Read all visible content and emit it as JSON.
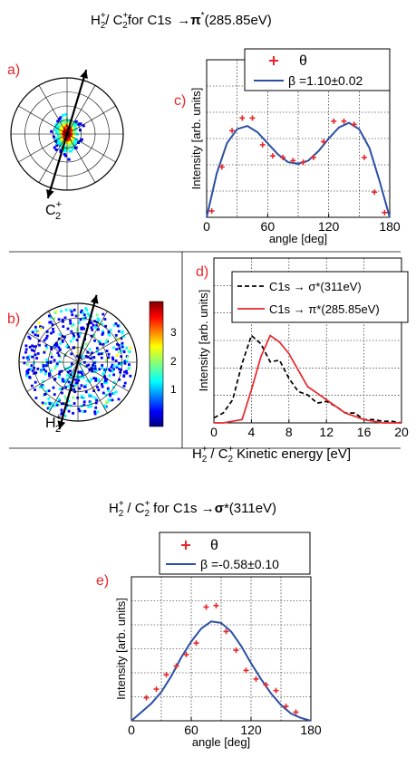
{
  "figure": {
    "title_top": {
      "main": "H",
      "sup": "+",
      "sub": "2",
      "slash": "/ C",
      "sup2": "+",
      "sub2": "2",
      "tail": "for C1s",
      "arrow": "→",
      "pi": "π",
      "star": "*",
      "energy": "(285.85eV)"
    },
    "title_bottom": {
      "main": "H",
      "sup": "+",
      "sub": "2",
      "slash": " / C",
      "sup2": "+",
      "sub2": "2",
      "tail": " for C1s ",
      "arrow": "→",
      "sigma": "σ",
      "star": "*",
      "energy": "(311eV)"
    },
    "panel_labels": {
      "a": "a)",
      "b": "b)",
      "c": "c)",
      "d": "d)",
      "e": "e)"
    },
    "polar_a_label": {
      "base": "C",
      "sup": "+",
      "sub": "2"
    },
    "polar_b_label": {
      "base": "H",
      "sup": "+",
      "sub": "2"
    },
    "colorbar_ticks": [
      "1",
      "2",
      "3"
    ],
    "colors": {
      "red": "#e8262a",
      "blue": "#2a4fa5",
      "black": "#000000"
    }
  },
  "chart_data": [
    {
      "id": "c",
      "type": "scatter",
      "xlabel": "angle [deg]",
      "ylabel": "Intensity [arb. units]",
      "xticks": [
        "0",
        "60",
        "120",
        "180"
      ],
      "xlim": [
        0,
        180
      ],
      "ylim": [
        0,
        1.0
      ],
      "legend": {
        "placement": "top-right",
        "points_label": "θ",
        "fit_label": "β =1.10±0.02"
      },
      "points": {
        "x": [
          5,
          15,
          25,
          35,
          45,
          55,
          65,
          75,
          85,
          95,
          105,
          115,
          125,
          135,
          145,
          155,
          165,
          175
        ],
        "y": [
          0.04,
          0.32,
          0.55,
          0.63,
          0.63,
          0.46,
          0.39,
          0.38,
          0.36,
          0.35,
          0.38,
          0.48,
          0.61,
          0.61,
          0.59,
          0.38,
          0.16,
          0.03
        ]
      },
      "fit": {
        "x": [
          0,
          10,
          20,
          30,
          40,
          50,
          60,
          70,
          80,
          90,
          100,
          110,
          120,
          130,
          140,
          150,
          160,
          170,
          180
        ],
        "y": [
          0.0,
          0.28,
          0.47,
          0.56,
          0.58,
          0.54,
          0.47,
          0.4,
          0.35,
          0.34,
          0.36,
          0.42,
          0.5,
          0.57,
          0.6,
          0.56,
          0.44,
          0.23,
          0.0
        ]
      }
    },
    {
      "id": "d",
      "type": "line",
      "xlabel_pre": {
        "h": "H",
        "hsup": "+",
        "hsub": "2",
        "c": " / C",
        "csup": "+",
        "csub": "2"
      },
      "xlabel": "Kinetic energy [eV]",
      "ylabel": "Intensity [arb. units]",
      "xticks": [
        "0",
        "4",
        "8",
        "12",
        "16",
        "20"
      ],
      "xlim": [
        0,
        20
      ],
      "ylim": [
        0,
        1.0
      ],
      "legend": {
        "placement": "top-right",
        "entries": [
          {
            "prefix": "C1s",
            "arrow": "→",
            "sym": "σ*",
            "energy": "(311eV)"
          },
          {
            "prefix": "C1s",
            "arrow": "→",
            "sym": "π*",
            "energy": "(285.85eV)"
          }
        ]
      },
      "series": [
        {
          "style": "dashed-black",
          "x": [
            0,
            1,
            2,
            3,
            4,
            5,
            6,
            7,
            8,
            9,
            10,
            11,
            12,
            13,
            14,
            15,
            16,
            17,
            18,
            19,
            20
          ],
          "y": [
            0.03,
            0.06,
            0.14,
            0.36,
            0.53,
            0.48,
            0.37,
            0.38,
            0.27,
            0.19,
            0.17,
            0.12,
            0.13,
            0.1,
            0.06,
            0.06,
            0.02,
            0.02,
            0.01,
            0.01,
            0.0
          ]
        },
        {
          "style": "solid-red",
          "x": [
            0,
            1,
            2,
            3,
            4,
            5,
            6,
            7,
            8,
            9,
            10,
            11,
            12,
            13,
            14,
            15,
            16,
            17,
            18,
            19,
            20
          ],
          "y": [
            0.0,
            0.0,
            0.01,
            0.02,
            0.2,
            0.4,
            0.53,
            0.49,
            0.42,
            0.32,
            0.22,
            0.18,
            0.14,
            0.1,
            0.06,
            0.04,
            0.02,
            0.01,
            0.0,
            0.0,
            0.0
          ]
        }
      ]
    },
    {
      "id": "e",
      "type": "scatter",
      "xlabel": "angle [deg]",
      "ylabel": "Intensity [arb. units]",
      "xticks": [
        "0",
        "60",
        "120",
        "180"
      ],
      "xlim": [
        0,
        180
      ],
      "ylim": [
        0,
        1.0
      ],
      "legend": {
        "placement": "top-right",
        "points_label": "θ",
        "fit_label": "β =-0.58±0.10"
      },
      "points": {
        "x": [
          15,
          25,
          35,
          45,
          55,
          65,
          75,
          85,
          95,
          105,
          115,
          125,
          135,
          145,
          155,
          165
        ],
        "y": [
          0.16,
          0.22,
          0.32,
          0.38,
          0.46,
          0.54,
          0.79,
          0.8,
          0.62,
          0.49,
          0.35,
          0.29,
          0.25,
          0.21,
          0.1,
          0.06
        ]
      },
      "fit": {
        "x": [
          0,
          10,
          20,
          30,
          40,
          50,
          60,
          70,
          80,
          90,
          100,
          110,
          120,
          130,
          140,
          150,
          160,
          170,
          180
        ],
        "y": [
          0.0,
          0.06,
          0.12,
          0.2,
          0.31,
          0.44,
          0.55,
          0.64,
          0.69,
          0.68,
          0.62,
          0.52,
          0.4,
          0.29,
          0.19,
          0.11,
          0.05,
          0.02,
          0.0
        ]
      }
    }
  ]
}
